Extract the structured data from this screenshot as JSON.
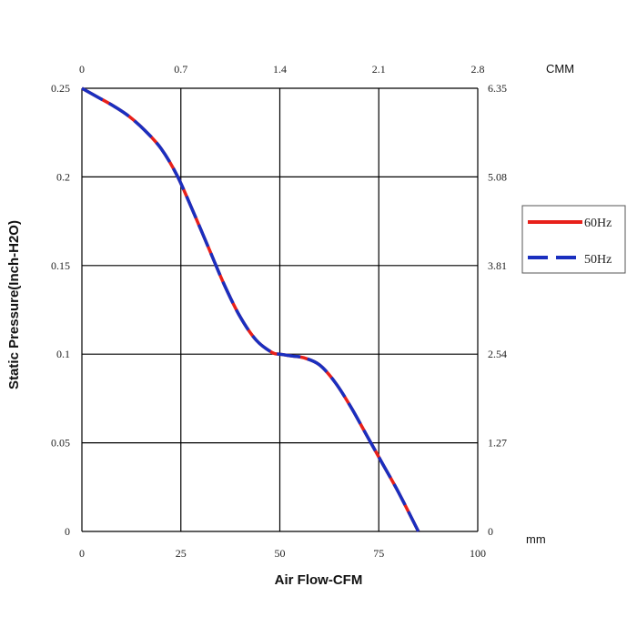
{
  "chart_data": {
    "type": "line",
    "xlabel": "Air Flow-CFM",
    "ylabel": "Static Pressure(Inch-H2O)",
    "xlim": [
      0,
      100
    ],
    "ylim": [
      0,
      0.25
    ],
    "x_ticks": [
      "0",
      "25",
      "50",
      "75",
      "100"
    ],
    "y_ticks": [
      "0",
      "0.05",
      "0.1",
      "0.15",
      "0.2",
      "0.25"
    ],
    "x2_unit": "CMM",
    "x2_ticks": [
      "0",
      "0.7",
      "1.4",
      "2.1",
      "2.8"
    ],
    "y2_unit": "mm",
    "y2_ticks": [
      "0",
      "1.27",
      "2.54",
      "3.81",
      "5.08",
      "6.35"
    ],
    "grid": true,
    "legend_position": "right",
    "series": [
      {
        "name": "60Hz",
        "color": "#e8201a",
        "style": "solid",
        "x": [
          0,
          4,
          8,
          12,
          16,
          20,
          24,
          28,
          32,
          36,
          40,
          44,
          48,
          50,
          53,
          56,
          60,
          64,
          68,
          72,
          76,
          80,
          85
        ],
        "y": [
          0.25,
          0.245,
          0.24,
          0.234,
          0.226,
          0.216,
          0.201,
          0.181,
          0.16,
          0.139,
          0.121,
          0.108,
          0.101,
          0.1,
          0.099,
          0.098,
          0.094,
          0.084,
          0.07,
          0.054,
          0.038,
          0.022,
          0.0
        ]
      },
      {
        "name": "50Hz",
        "color": "#1a2fbf",
        "style": "dashed",
        "x": [
          0,
          4,
          8,
          12,
          16,
          20,
          24,
          28,
          32,
          36,
          40,
          44,
          48,
          50,
          53,
          56,
          60,
          64,
          68,
          72,
          76,
          80,
          85
        ],
        "y": [
          0.25,
          0.245,
          0.24,
          0.234,
          0.226,
          0.216,
          0.201,
          0.181,
          0.16,
          0.139,
          0.121,
          0.108,
          0.101,
          0.1,
          0.099,
          0.098,
          0.094,
          0.084,
          0.07,
          0.054,
          0.038,
          0.022,
          0.0
        ]
      }
    ]
  }
}
